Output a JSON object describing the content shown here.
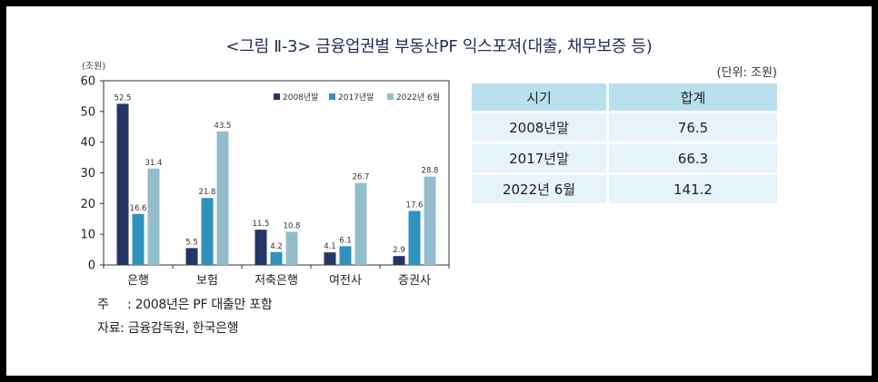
{
  "figure": {
    "title": "<그림 Ⅱ-3> 금융업권별 부동산PF 익스포져(대출, 채무보증 등)",
    "unit": "(조원)"
  },
  "notes": {
    "note_key": "주",
    "note_text": ": 2008년은 PF 대출만 포함",
    "source_key": "자료:",
    "source_text": "금융감독원, 한국은행"
  },
  "colors": {
    "series_2008": "#243665",
    "series_2017": "#2e92bd",
    "series_2022": "#93bdcc",
    "table_header": "#b9e0ee",
    "table_row": "#e6f3f8"
  },
  "chart_data": {
    "type": "bar",
    "categories": [
      "은행",
      "보험",
      "저축은행",
      "여전사",
      "증권사"
    ],
    "series": [
      {
        "name": "2008년말",
        "values": [
          52.5,
          5.5,
          11.5,
          4.1,
          2.9
        ],
        "value_labels": [
          "52.5",
          "5.5",
          "11.5",
          "4.1",
          "2.9"
        ]
      },
      {
        "name": "2017년말",
        "values": [
          16.6,
          21.8,
          4.2,
          6.1,
          17.6
        ],
        "value_labels": [
          "16.6",
          "21.8",
          "4.2",
          "6.1",
          "17.6"
        ]
      },
      {
        "name": "2022년 6월",
        "values": [
          31.4,
          43.5,
          10.8,
          26.7,
          28.8
        ],
        "value_labels": [
          "31.4",
          "43.5",
          "10.8",
          "26.7",
          "28.8"
        ]
      }
    ],
    "ylim": [
      0,
      60
    ],
    "yticks": [
      "0",
      "10",
      "20",
      "30",
      "40",
      "50",
      "60"
    ],
    "ylabel": "(조원)",
    "legend": "top-right",
    "grid": false
  },
  "summary_table": {
    "unit": "(단위: 조원)",
    "headers": [
      "시기",
      "합계"
    ],
    "rows": [
      [
        "2008년말",
        "76.5"
      ],
      [
        "2017년말",
        "66.3"
      ],
      [
        "2022년 6월",
        "141.2"
      ]
    ]
  }
}
